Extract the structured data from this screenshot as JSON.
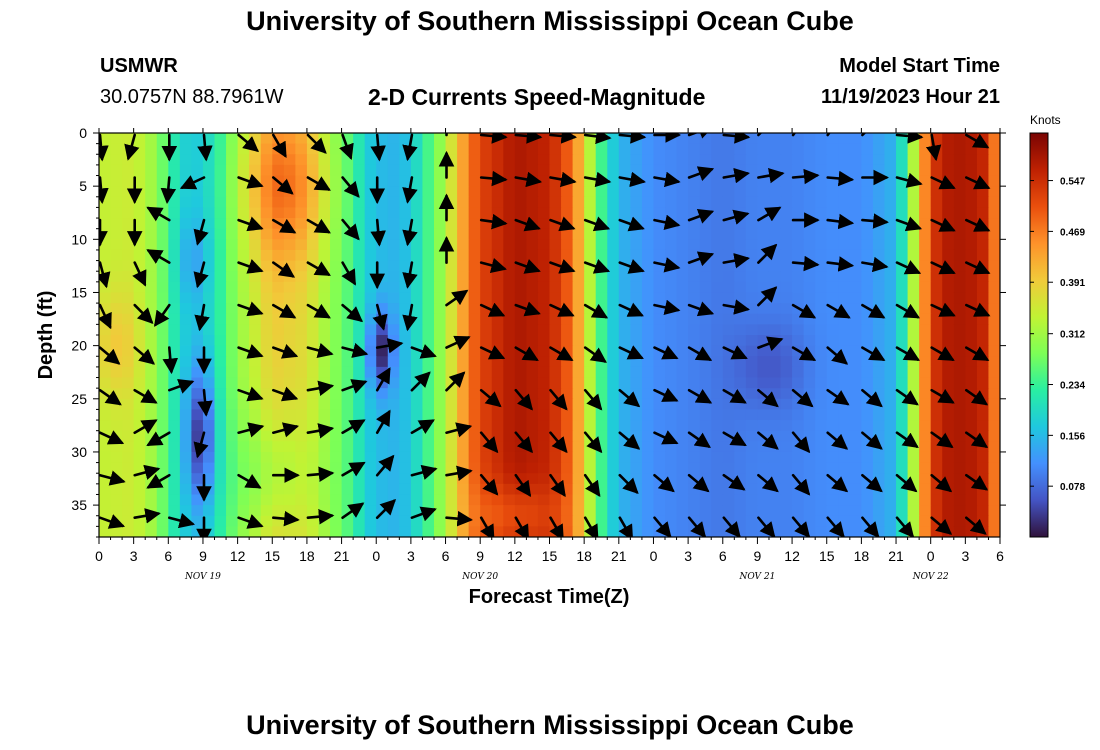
{
  "header": {
    "title": "University of Southern Mississippi Ocean Cube",
    "station_id": "USMWR",
    "station_coords": "30.0757N  88.7961W",
    "subtitle": "2-D Currents Speed-Magnitude",
    "model_label": "Model Start Time",
    "model_value": "11/19/2023 Hour 21"
  },
  "footer": {
    "title": "University of Southern Mississippi Ocean Cube"
  },
  "chart_data": {
    "type": "heatmap",
    "title": "2-D Currents Speed-Magnitude",
    "xlabel": "Forecast Time(Z)",
    "ylabel": "Depth (ft)",
    "x_start_hour": 0,
    "x_end_hour": 78,
    "x_ticks": [
      "0",
      "3",
      "6",
      "9",
      "12",
      "15",
      "18",
      "21",
      "0",
      "3",
      "6",
      "9",
      "12",
      "15",
      "18",
      "21",
      "0",
      "3",
      "6",
      "9",
      "12",
      "15",
      "18",
      "21",
      "0",
      "3",
      "6"
    ],
    "date_labels": [
      {
        "hour": 9,
        "label": "NOV 19"
      },
      {
        "hour": 33,
        "label": "NOV 20"
      },
      {
        "hour": 57,
        "label": "NOV 21"
      },
      {
        "hour": 72,
        "label": "NOV 22"
      }
    ],
    "y_ticks": [
      0,
      5,
      10,
      15,
      20,
      25,
      30,
      35
    ],
    "ylim": [
      0,
      38
    ],
    "colorbar": {
      "title": "Knots",
      "ticks": [
        "0.547",
        "0.469",
        "0.391",
        "0.312",
        "0.234",
        "0.156",
        "0.078"
      ],
      "range": [
        0.0,
        0.62
      ],
      "colors": [
        "#30123b",
        "#4454c4",
        "#4490fe",
        "#1fc8de",
        "#29efa2",
        "#7dff56",
        "#c1f334",
        "#f1ca3a",
        "#fe922a",
        "#ea4f0d",
        "#be2102",
        "#7a0403"
      ]
    },
    "speed_profile": {
      "hours": [
        0,
        3,
        5,
        6,
        7,
        8,
        9,
        10,
        11,
        12,
        15,
        18,
        20,
        22,
        23,
        24,
        25,
        26,
        27,
        28,
        30,
        31,
        32,
        33,
        36,
        39,
        41,
        42,
        43,
        44,
        45,
        48,
        51,
        54,
        57,
        60,
        63,
        66,
        69,
        70,
        71,
        72,
        73,
        75,
        77,
        78
      ],
      "knots": [
        0.34,
        0.35,
        0.3,
        0.24,
        0.19,
        0.17,
        0.18,
        0.21,
        0.25,
        0.3,
        0.39,
        0.37,
        0.3,
        0.24,
        0.18,
        0.16,
        0.15,
        0.15,
        0.17,
        0.22,
        0.32,
        0.4,
        0.47,
        0.52,
        0.58,
        0.56,
        0.48,
        0.38,
        0.28,
        0.2,
        0.15,
        0.11,
        0.1,
        0.09,
        0.1,
        0.1,
        0.11,
        0.11,
        0.15,
        0.25,
        0.4,
        0.52,
        0.57,
        0.58,
        0.55,
        0.4
      ]
    },
    "depth_anomalies": [
      {
        "hour": 8.8,
        "depth": 28.5,
        "dknots": -0.14,
        "hour_width": 1.2,
        "depth_width": 6.5
      },
      {
        "hour": 24.4,
        "depth": 20.5,
        "dknots": -0.14,
        "hour_width": 1.0,
        "depth_width": 3.5
      },
      {
        "hour": 8.2,
        "depth": 12,
        "dknots": -0.04,
        "hour_width": 1.5,
        "depth_width": 4
      },
      {
        "hour": 16,
        "depth": 5,
        "dknots": 0.1,
        "hour_width": 3.5,
        "depth_width": 7
      },
      {
        "hour": 15,
        "depth": 32,
        "dknots": -0.06,
        "hour_width": 3.5,
        "depth_width": 6
      },
      {
        "hour": 1.5,
        "depth": 20,
        "dknots": 0.05,
        "hour_width": 2,
        "depth_width": 5
      },
      {
        "hour": 58,
        "depth": 22,
        "dknots": -0.04,
        "hour_width": 3,
        "depth_width": 4
      },
      {
        "hour": 36,
        "depth": 36,
        "dknots": -0.06,
        "hour_width": 3.5,
        "depth_width": 3
      }
    ],
    "vectors": {
      "hours": [
        0,
        3,
        6,
        9,
        12,
        15,
        18,
        21,
        24,
        27,
        30,
        33,
        36,
        39,
        42,
        45,
        48,
        51,
        54,
        57,
        60,
        63,
        66,
        69,
        72,
        75
      ],
      "depths": [
        0,
        4,
        8,
        12,
        16,
        20,
        24,
        28,
        32,
        36
      ],
      "directions_deg": [
        [
          175,
          195,
          180,
          175,
          130,
          150,
          135,
          160,
          175,
          190,
          0,
          95,
          95,
          95,
          97,
          95,
          90,
          70,
          95,
          45,
          35,
          35,
          45,
          95,
          170,
          120
        ],
        [
          175,
          180,
          185,
          245,
          110,
          130,
          120,
          140,
          180,
          190,
          0,
          95,
          100,
          100,
          100,
          100,
          100,
          70,
          80,
          80,
          85,
          95,
          90,
          105,
          115,
          115
        ],
        [
          180,
          180,
          300,
          195,
          110,
          120,
          120,
          140,
          175,
          190,
          0,
          98,
          110,
          110,
          110,
          110,
          102,
          70,
          75,
          60,
          90,
          97,
          95,
          110,
          115,
          115
        ],
        [
          165,
          155,
          300,
          195,
          110,
          125,
          120,
          150,
          180,
          190,
          0,
          105,
          110,
          110,
          110,
          110,
          102,
          70,
          80,
          45,
          95,
          97,
          100,
          115,
          115,
          115
        ],
        [
          155,
          135,
          215,
          190,
          110,
          120,
          120,
          130,
          165,
          190,
          55,
          115,
          110,
          115,
          120,
          115,
          102,
          110,
          100,
          45,
          120,
          120,
          120,
          120,
          115,
          115
        ],
        [
          130,
          130,
          175,
          180,
          110,
          110,
          105,
          105,
          80,
          110,
          65,
          115,
          120,
          120,
          125,
          115,
          115,
          120,
          115,
          70,
          120,
          130,
          120,
          120,
          120,
          120
        ],
        [
          125,
          120,
          70,
          175,
          110,
          110,
          80,
          70,
          30,
          45,
          45,
          130,
          140,
          140,
          140,
          130,
          115,
          120,
          120,
          130,
          130,
          125,
          130,
          125,
          120,
          125
        ],
        [
          115,
          60,
          240,
          195,
          75,
          75,
          80,
          60,
          30,
          60,
          75,
          140,
          140,
          140,
          140,
          130,
          115,
          125,
          120,
          130,
          140,
          130,
          130,
          125,
          125,
          125
        ],
        [
          105,
          75,
          240,
          180,
          120,
          90,
          85,
          60,
          40,
          75,
          80,
          140,
          145,
          145,
          145,
          135,
          130,
          130,
          125,
          130,
          140,
          130,
          130,
          130,
          130,
          125
        ],
        [
          110,
          80,
          105,
          180,
          110,
          95,
          85,
          55,
          45,
          70,
          95,
          150,
          150,
          150,
          150,
          150,
          140,
          140,
          140,
          140,
          140,
          140,
          140,
          140,
          130,
          130
        ]
      ]
    }
  }
}
